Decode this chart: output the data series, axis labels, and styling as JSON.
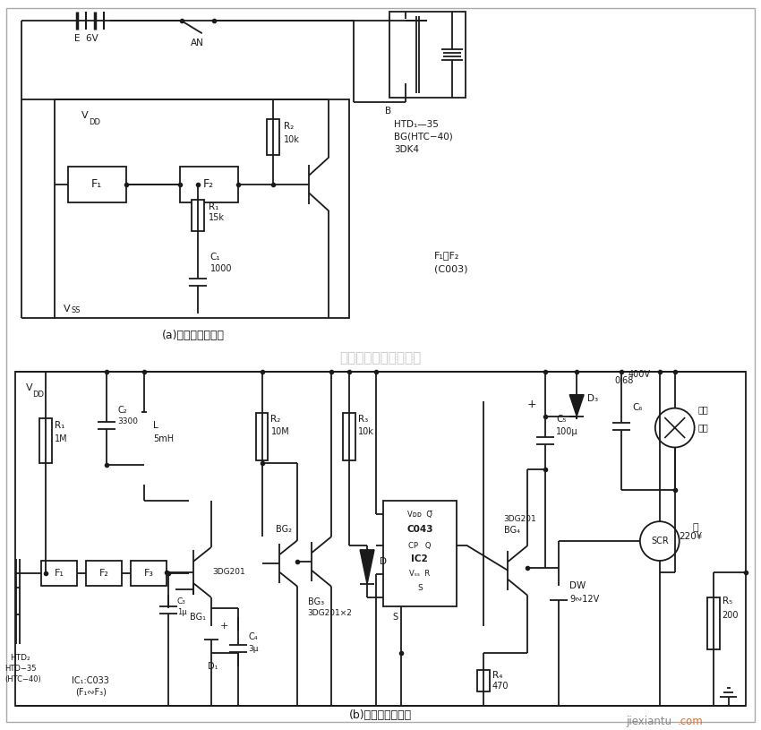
{
  "bg_color": "#ffffff",
  "line_color": "#1a1a1a",
  "label_a": "(a)超声波发射电路",
  "label_b": "(b)超声波接收电路",
  "top_title": "杭州将客科技有限公司",
  "jiexiantu": "jiexiantu",
  "com": ".com",
  "watermark_orange": "#e07030",
  "watermark_gray": "#888888"
}
